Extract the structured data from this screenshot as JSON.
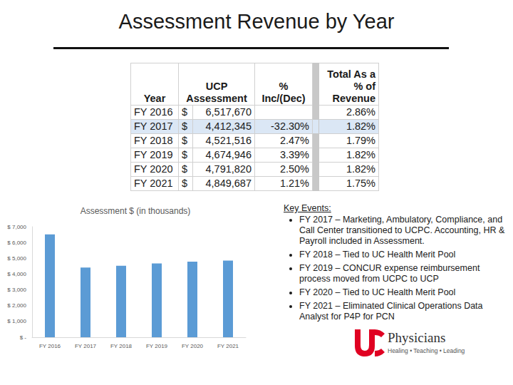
{
  "title": "Assessment Revenue by Year",
  "table": {
    "header": [
      "Year",
      "UCP Assessment",
      "% Inc/(Dec)",
      "Total As a % of Revenue"
    ],
    "rows": [
      {
        "cells": [
          "FY 2016",
          "$",
          "6,517,670",
          null,
          "2.86%"
        ]
      },
      {
        "cells": [
          "FY 2017",
          "$",
          "4,412,345",
          "-32.30%",
          "1.82%"
        ],
        "highlight": true
      },
      {
        "cells": [
          "FY 2018",
          "$",
          "4,521,516",
          "2.47%",
          "1.79%"
        ]
      },
      {
        "cells": [
          "FY 2019",
          "$",
          "4,674,946",
          "3.39%",
          "1.82%"
        ]
      },
      {
        "cells": [
          "FY 2020",
          "$",
          "4,791,820",
          "2.50%",
          "1.82%"
        ]
      },
      {
        "cells": [
          "FY 2021",
          "$",
          "4,849,687",
          "1.21%",
          "1.75%"
        ]
      }
    ]
  },
  "chart_data": {
    "type": "bar",
    "title": "Assessment $ (in thousands)",
    "categories": [
      "FY 2016",
      "FY 2017",
      "FY 2018",
      "FY 2019",
      "FY 2020",
      "FY 2021"
    ],
    "values": [
      6518,
      4412,
      4522,
      4675,
      4792,
      4850
    ],
    "color": "#5b9bd5",
    "ylim": [
      0,
      7000
    ],
    "yticks": [
      {
        "value": 0,
        "label": "$ -"
      },
      {
        "value": 1000,
        "label": "$ 1,000"
      },
      {
        "value": 2000,
        "label": "$ 2,000"
      },
      {
        "value": 3000,
        "label": "$ 3,000"
      },
      {
        "value": 4000,
        "label": "$ 4,000"
      },
      {
        "value": 5000,
        "label": "$ 5,000"
      },
      {
        "value": 6000,
        "label": "$ 6,000"
      },
      {
        "value": 7000,
        "label": "$ 7,000"
      }
    ],
    "grid": false
  },
  "key_events": {
    "heading": "Key Events:",
    "items": [
      "FY 2017 – Marketing, Ambulatory, Compliance, and Call Center transitioned to UCPC. Accounting, HR & Payroll included in Assessment.",
      "FY 2018 – Tied to UC Health Merit Pool",
      "FY 2019 – CONCUR expense reimbursement process moved from UCPC to UCP",
      "FY 2020 – Tied to UC Health Merit Pool",
      "FY 2021 – Eliminated Clinical Operations Data Analyst for P4P for PCN"
    ]
  },
  "logo": {
    "name": "Physicians",
    "tagline": "Healing • Teaching • Leading"
  }
}
